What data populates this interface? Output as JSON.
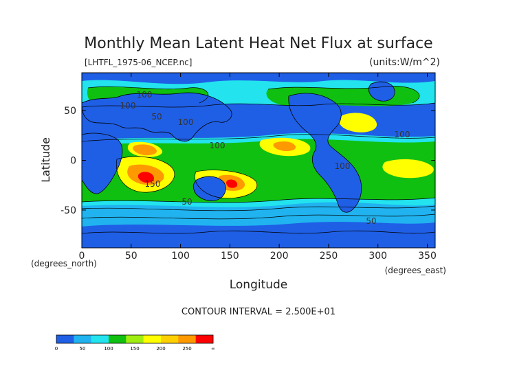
{
  "chart_data": {
    "type": "heatmap",
    "title": "Monthly Mean Latent Heat Net Flux at surface",
    "subtitle_left": "[LHTFL_1975-06_NCEP.nc]",
    "units_label": "(units:W/m^2)",
    "xlabel": "Longitude",
    "ylabel": "Latitude",
    "x_unit_label": "(degrees_east)",
    "y_unit_label": "(degrees_north)",
    "xlim": [
      0,
      358
    ],
    "ylim": [
      -88,
      88
    ],
    "x_ticks": [
      0,
      50,
      100,
      150,
      200,
      250,
      300,
      350
    ],
    "y_ticks": [
      -50,
      0,
      50
    ],
    "contour_interval_text": "CONTOUR INTERVAL = 2.500E+01",
    "contour_labels": [
      "100",
      "100",
      "100",
      "150",
      "50",
      "50",
      "100",
      "100",
      "100",
      "50"
    ],
    "colorbar": {
      "labels": [
        "0",
        "50",
        "100",
        "150",
        "200",
        "250",
        "∞"
      ],
      "colors": [
        "#1f5fe6",
        "#20b3f0",
        "#22e3ee",
        "#10c010",
        "#a0ee10",
        "#ffff00",
        "#ffd000",
        "#ff9900",
        "#ff0000"
      ]
    },
    "grid": false
  }
}
